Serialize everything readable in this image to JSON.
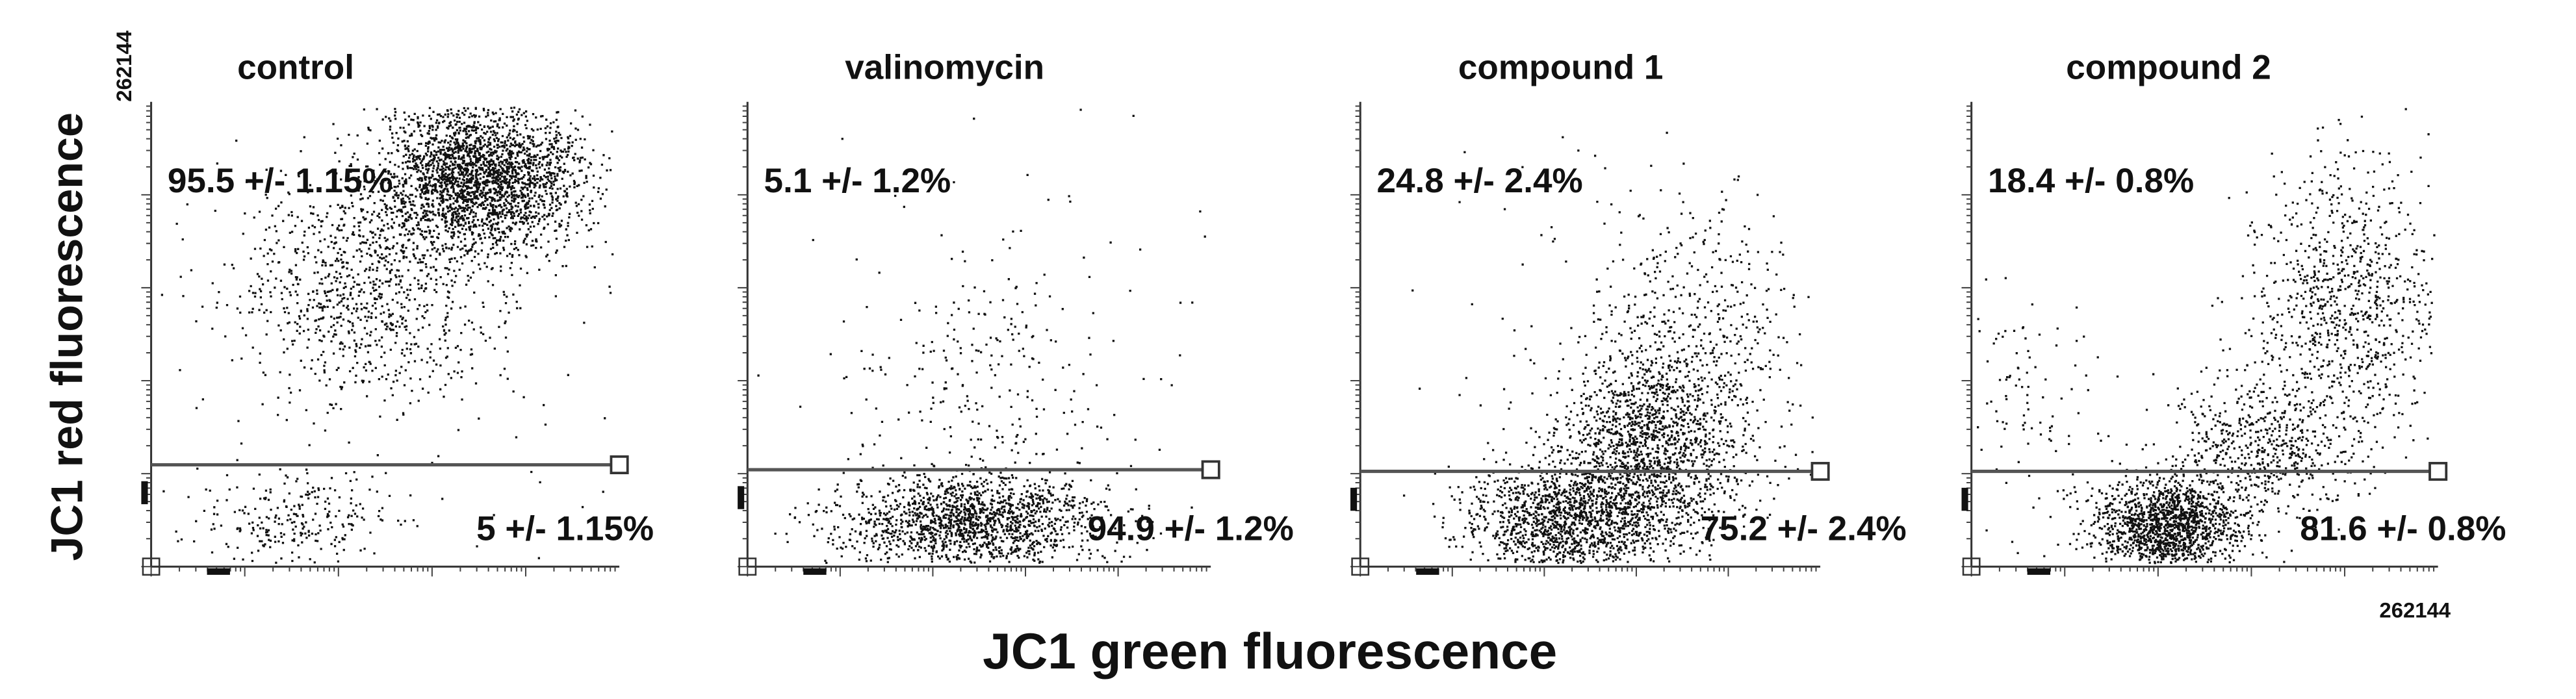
{
  "y_axis_label": "JC1 red fluorescence",
  "x_axis_label": "JC1 green fluorescence",
  "y_axis_max_label": "262144",
  "x_axis_max_label": "262144",
  "panels": [
    {
      "title": "control",
      "upper": "95.5 +/- 1.15%",
      "lower": "5 +/- 1.15%"
    },
    {
      "title": "valinomycin",
      "upper": "5.1 +/- 1.2%",
      "lower": "94.9 +/- 1.2%"
    },
    {
      "title": "compound 1",
      "upper": "24.8 +/- 2.4%",
      "lower": "75.2 +/- 2.4%"
    },
    {
      "title": "compound 2",
      "upper": "18.4 +/- 0.8%",
      "lower": "81.6 +/- 0.8%"
    }
  ]
}
